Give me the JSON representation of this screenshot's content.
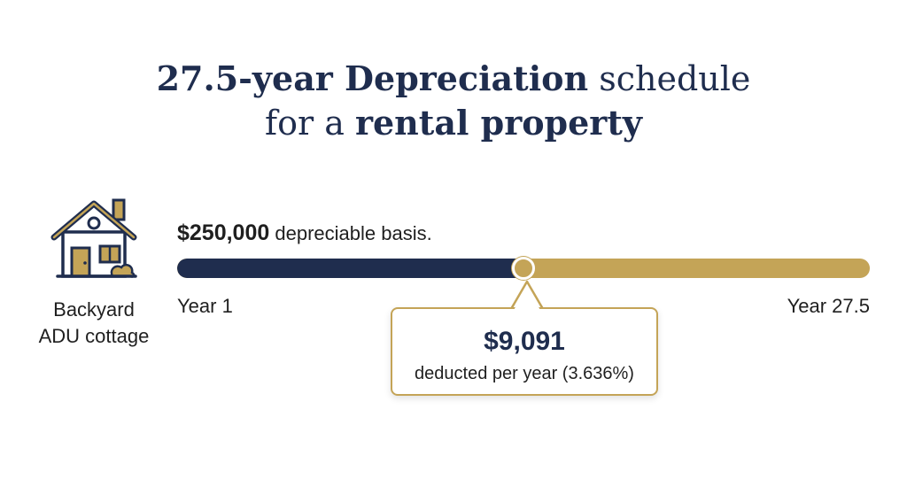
{
  "title": {
    "line1_bold": "27.5-year Depreciation",
    "line1_rest": " schedule",
    "line2_start": "for a ",
    "line2_bold": "rental property"
  },
  "property": {
    "icon": "house-icon",
    "label_line1": "Backyard",
    "label_line2": "ADU cottage"
  },
  "basis": {
    "amount": "$250,000",
    "label": " depreciable basis."
  },
  "timeline": {
    "start_label": "Year 1",
    "end_label": "Year 27.5",
    "progress_fraction": 0.5
  },
  "callout": {
    "amount": "$9,091",
    "text": "deducted per year (3.636%)"
  },
  "colors": {
    "navy": "#1f2d4e",
    "gold": "#c4a457"
  }
}
